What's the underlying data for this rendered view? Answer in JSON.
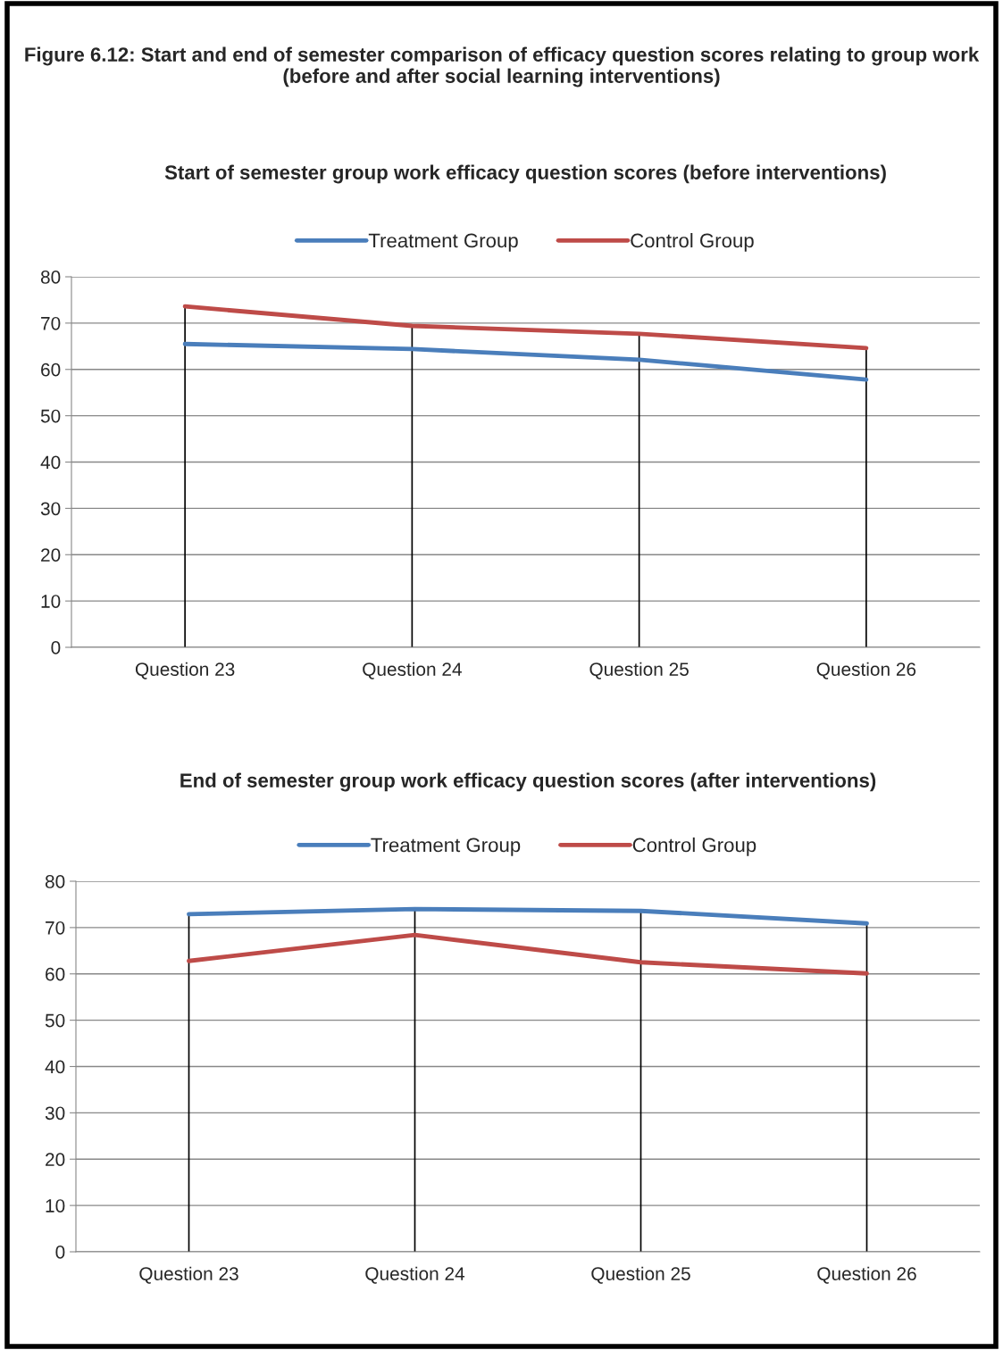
{
  "chart_data": [
    {
      "type": "line",
      "title": "Figure 6.12: Start and end of semester comparison of efficacy question scores relating to group work (before and after social learning interventions)",
      "subtitle": "Start of semester group work efficacy question scores (before interventions)",
      "categories": [
        "Question 23",
        "Question 24",
        "Question 25",
        "Question 26"
      ],
      "series": [
        {
          "name": "Treatment Group",
          "color": "#4a7ebb",
          "values": [
            65.5,
            64.4,
            62.1,
            57.8
          ]
        },
        {
          "name": "Control Group",
          "color": "#be4b48",
          "values": [
            73.6,
            69.4,
            67.7,
            64.6
          ]
        }
      ],
      "ylim": [
        0,
        80
      ],
      "yticks": [
        0,
        10,
        20,
        30,
        40,
        50,
        60,
        70,
        80
      ],
      "grid": true,
      "legend": "top",
      "marker": "none",
      "line_style": "solid"
    },
    {
      "type": "line",
      "title": "End of semester group work efficacy question scores (after interventions)",
      "categories": [
        "Question 23",
        "Question 24",
        "Question 25",
        "Question 26"
      ],
      "series": [
        {
          "name": "Treatment Group",
          "color": "#4a7ebb",
          "values": [
            72.9,
            74.0,
            73.6,
            70.9
          ]
        },
        {
          "name": "Control Group",
          "color": "#be4b48",
          "values": [
            62.8,
            68.4,
            62.5,
            60.1
          ]
        }
      ],
      "ylim": [
        0,
        80
      ],
      "yticks": [
        0,
        10,
        20,
        30,
        40,
        50,
        60,
        70,
        80
      ],
      "grid": true,
      "legend": "top",
      "marker": "none",
      "line_style": "solid"
    }
  ]
}
